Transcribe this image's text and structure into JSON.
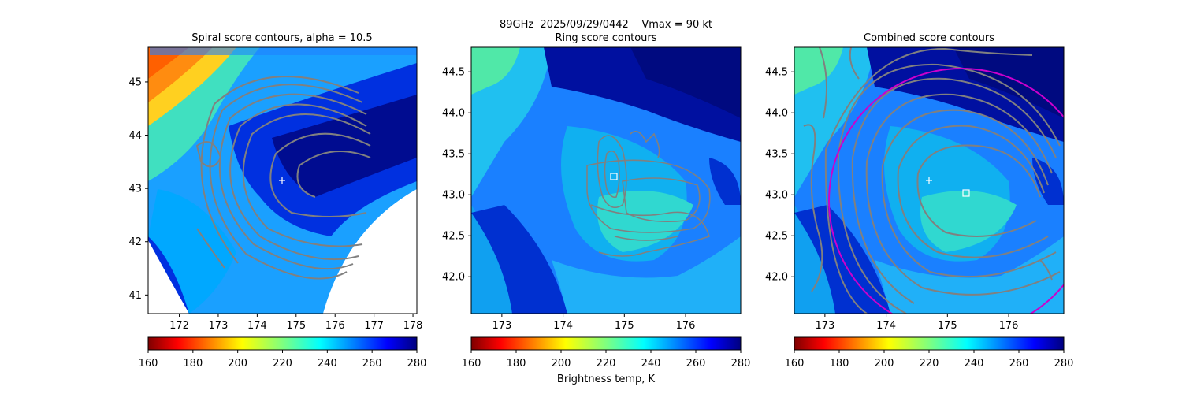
{
  "figure": {
    "suptitle": "89GHz  2025/09/29/0442    Vmax = 90 kt",
    "colorbar_label": "Brightness temp, K",
    "colormap": "jet",
    "colormap_stops": [
      "#7f0000",
      "#ff0000",
      "#ff7f00",
      "#ffff00",
      "#7fff7f",
      "#00ffff",
      "#007fff",
      "#0000ff",
      "#00007f"
    ],
    "cbar_ticks": [
      "160",
      "180",
      "200",
      "220",
      "240",
      "260",
      "280"
    ],
    "contour_color": "#808080"
  },
  "chart_data": [
    {
      "type": "heatmap",
      "title": "Spiral score contours, alpha = 10.5",
      "xlim": [
        171.2,
        178.1
      ],
      "ylim": [
        40.65,
        45.65
      ],
      "xticks": [
        "172",
        "173",
        "174",
        "175",
        "176",
        "177",
        "178"
      ],
      "yticks": [
        "41",
        "42",
        "43",
        "44",
        "45"
      ],
      "clim": [
        160,
        280
      ],
      "marker": {
        "symbol": "+",
        "lon": 174.6,
        "lat": 43.15
      },
      "swath_edge": "curved lower-right boundary, data clipped (white)"
    },
    {
      "type": "heatmap",
      "title": "Ring score contours",
      "xlim": [
        172.5,
        176.9
      ],
      "ylim": [
        41.55,
        44.8
      ],
      "xticks": [
        "173",
        "174",
        "175",
        "176"
      ],
      "yticks": [
        "42.0",
        "42.5",
        "43.0",
        "43.5",
        "44.0",
        "44.5"
      ],
      "clim": [
        160,
        280
      ],
      "marker": {
        "symbol": "square",
        "lon": 174.75,
        "lat": 43.2
      }
    },
    {
      "type": "heatmap",
      "title": "Combined score contours",
      "xlim": [
        172.5,
        176.9
      ],
      "ylim": [
        41.55,
        44.8
      ],
      "xticks": [
        "173",
        "174",
        "175",
        "176"
      ],
      "yticks": [
        "42.0",
        "42.5",
        "43.0",
        "43.5",
        "44.0",
        "44.5"
      ],
      "clim": [
        160,
        280
      ],
      "markers": [
        {
          "symbol": "+",
          "lon": 174.65,
          "lat": 43.15
        },
        {
          "symbol": "square",
          "lon": 175.3,
          "lat": 43.0
        }
      ],
      "circle_color": "#cc00cc"
    }
  ]
}
